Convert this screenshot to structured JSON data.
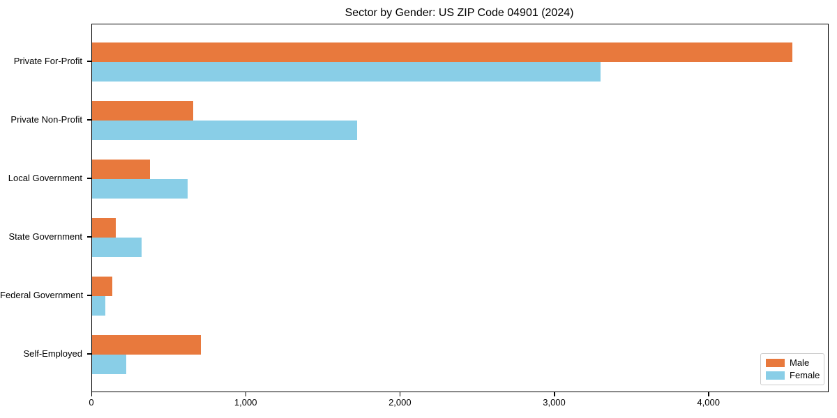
{
  "chart_data": {
    "type": "bar",
    "orientation": "horizontal",
    "title": "Sector by Gender: US ZIP Code 04901 (2024)",
    "categories": [
      "Private For-Profit",
      "Private Non-Profit",
      "Local Government",
      "State Government",
      "Federal Government",
      "Self-Employed"
    ],
    "series": [
      {
        "name": "Male",
        "color": "#e8793d",
        "values": [
          4540,
          655,
          375,
          155,
          130,
          705
        ]
      },
      {
        "name": "Female",
        "color": "#89cee7",
        "values": [
          3295,
          1720,
          620,
          320,
          85,
          220
        ]
      }
    ],
    "xlabel": "",
    "ylabel": "",
    "xlim": [
      0,
      4770
    ],
    "x_ticks": [
      {
        "value": 0,
        "label": "0"
      },
      {
        "value": 1000,
        "label": "1,000"
      },
      {
        "value": 2000,
        "label": "2,000"
      },
      {
        "value": 3000,
        "label": "3,000"
      },
      {
        "value": 4000,
        "label": "4,000"
      }
    ],
    "grid": false,
    "legend": {
      "position": "lower right",
      "entries": [
        "Male",
        "Female"
      ]
    }
  },
  "colors": {
    "male": "#e8793d",
    "female": "#89cee7",
    "axis": "#000000",
    "text": "#000000",
    "legend_border": "#cccccc",
    "background": "#ffffff"
  }
}
